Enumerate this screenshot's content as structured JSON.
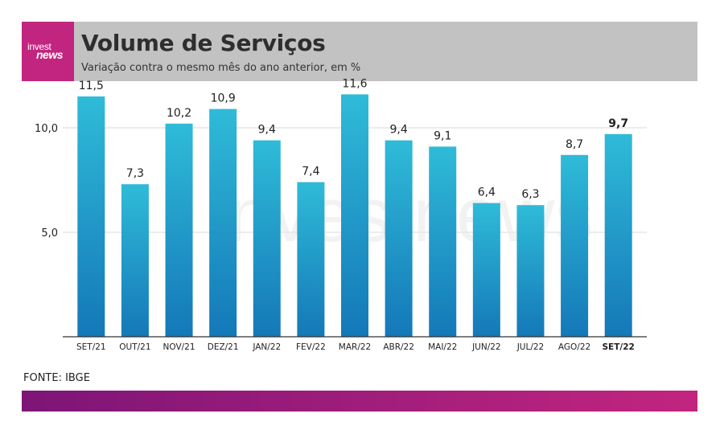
{
  "header": {
    "logo_top": "invest",
    "logo_bottom": "news",
    "title": "Volume de Serviços",
    "subtitle": "Variação contra o mesmo mês do ano anterior, em %",
    "brand_color": "#c2257f",
    "header_bg": "#c2c2c2"
  },
  "chart_data": {
    "type": "bar",
    "title": "Volume de Serviços",
    "subtitle": "Variação contra o mesmo mês do ano anterior, em %",
    "categories": [
      "SET/21",
      "OUT/21",
      "NOV/21",
      "DEZ/21",
      "JAN/22",
      "FEV/22",
      "MAR/22",
      "ABR/22",
      "MAI/22",
      "JUN/22",
      "JUL/22",
      "AGO/22",
      "SET/22"
    ],
    "values": [
      11.5,
      7.3,
      10.2,
      10.9,
      9.4,
      7.4,
      11.6,
      9.4,
      9.1,
      6.4,
      6.3,
      8.7,
      9.7
    ],
    "value_labels": [
      "11,5",
      "7,3",
      "10,2",
      "10,9",
      "9,4",
      "7,4",
      "11,6",
      "9,4",
      "9,1",
      "6,4",
      "6,3",
      "8,7",
      "9,7"
    ],
    "highlight_index": 12,
    "yticks": [
      10.0,
      5.0
    ],
    "ytick_labels": [
      "10,0",
      "5,0"
    ],
    "ylim": [
      0,
      12
    ],
    "grid": true,
    "xlabel": "",
    "ylabel": "",
    "bar_color_top": "#2fbbd8",
    "bar_color_bottom": "#1478b8",
    "watermark": "investnews"
  },
  "footer": {
    "source": "FONTE: IBGE",
    "gradient_start": "#7d1577",
    "gradient_end": "#c2257f"
  }
}
